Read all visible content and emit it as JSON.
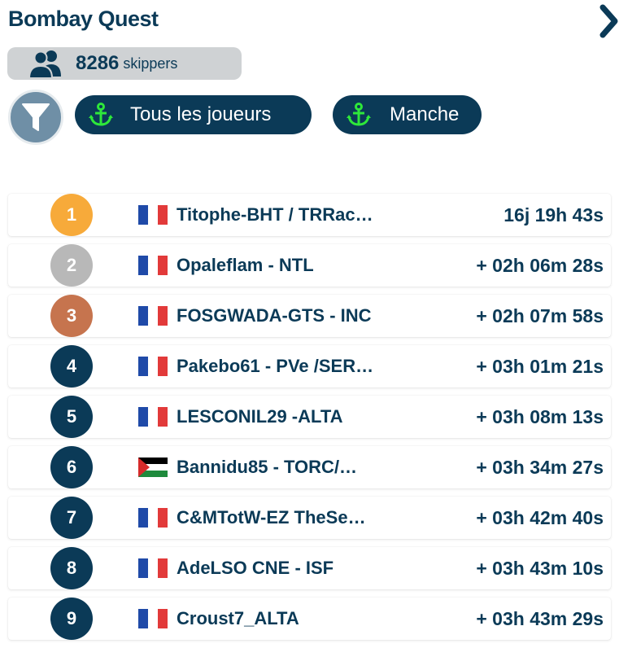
{
  "header": {
    "title": "Bombay Quest",
    "collapse_icon": "chevron-right-icon"
  },
  "skippers": {
    "count": "8286",
    "unit": "skippers",
    "icon": "users-icon"
  },
  "filters": {
    "filter_icon": "funnel-icon",
    "players_label": "Tous les joueurs",
    "leg_label": "Manche",
    "anchor_icon": "anchor-icon",
    "anchor_color": "#2ee83a"
  },
  "colors": {
    "navy": "#0b3a57",
    "gold": "#f7aa3a",
    "silver": "#b8b8b8",
    "bronze": "#c6744e",
    "filter_bg": "#6f8fa6"
  },
  "rankings": [
    {
      "rank": "1",
      "medal": "gold",
      "flag": "france",
      "name": "Titophe-BHT / TRRac…",
      "time": "16j 19h 43s"
    },
    {
      "rank": "2",
      "medal": "silver",
      "flag": "france",
      "name": "Opaleflam - NTL",
      "time": "+ 02h 06m 28s"
    },
    {
      "rank": "3",
      "medal": "bronze",
      "flag": "france",
      "name": "FOSGWADA-GTS - INC",
      "time": "+ 02h 07m 58s"
    },
    {
      "rank": "4",
      "medal": "none",
      "flag": "france",
      "name": "Pakebo61 - PVe /SER…",
      "time": "+ 03h 01m 21s"
    },
    {
      "rank": "5",
      "medal": "none",
      "flag": "france",
      "name": "LESCONIL29 -ALTA",
      "time": "+ 03h 08m 13s"
    },
    {
      "rank": "6",
      "medal": "none",
      "flag": "palestine",
      "name": "Bannidu85 - TORC/…",
      "time": "+ 03h 34m 27s"
    },
    {
      "rank": "7",
      "medal": "none",
      "flag": "france",
      "name": "C&MTotW-EZ TheSe…",
      "time": "+ 03h 42m 40s"
    },
    {
      "rank": "8",
      "medal": "none",
      "flag": "france",
      "name": "AdeLSO CNE - ISF",
      "time": "+ 03h 43m 10s"
    },
    {
      "rank": "9",
      "medal": "none",
      "flag": "france",
      "name": "Croust7_ALTA",
      "time": "+ 03h 43m 29s"
    }
  ]
}
